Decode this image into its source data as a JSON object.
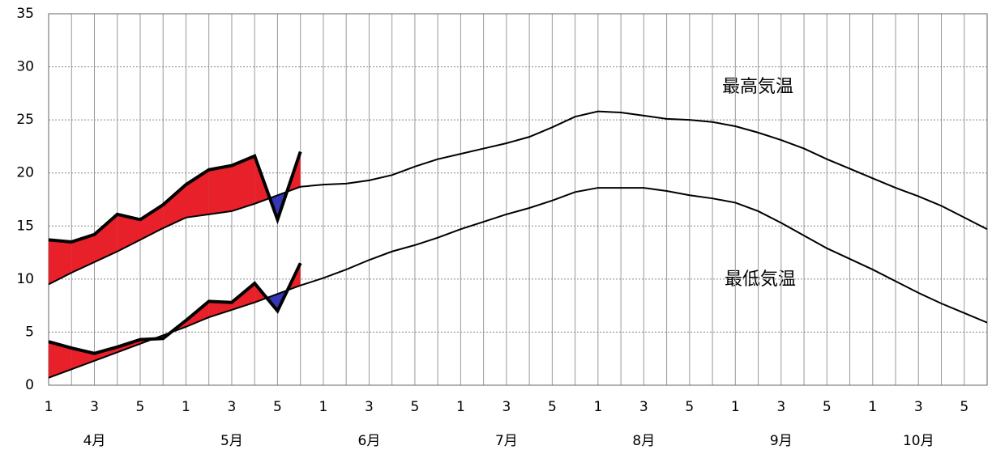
{
  "chart_data": {
    "type": "line",
    "categories": [
      "1",
      null,
      "3",
      null,
      "5",
      null,
      "1",
      null,
      "3",
      null,
      "5",
      null,
      "1",
      null,
      "3",
      null,
      "5",
      null,
      "1",
      null,
      "3",
      null,
      "5",
      null,
      "1",
      null,
      "3",
      null,
      "5",
      null,
      "1",
      null,
      "3",
      null,
      "5",
      null,
      "1",
      null,
      "3",
      null,
      "5",
      null
    ],
    "month_labels": [
      "4月",
      "5月",
      "6月",
      "7月",
      "8月",
      "9月",
      "10月"
    ],
    "ylim": [
      0,
      35
    ],
    "yticks": [
      0,
      5,
      10,
      15,
      20,
      25,
      30,
      35
    ],
    "grid": true,
    "annotations": [
      "最高気温",
      "最低気温"
    ],
    "above_color": "#e8202a",
    "below_color": "#3535b8",
    "series": [
      {
        "color": "#000000",
        "values": [
          9.5,
          10.6,
          11.6,
          12.6,
          13.7,
          14.8,
          15.8,
          16.1,
          16.4,
          17.1,
          17.9,
          18.7,
          18.9,
          19.0,
          19.3,
          19.8,
          20.6,
          21.3,
          21.8,
          22.3,
          22.8,
          23.4,
          24.3,
          25.3,
          25.8,
          25.7,
          25.4,
          25.1,
          25.0,
          24.8,
          24.4,
          23.8,
          23.1,
          22.3,
          21.3,
          20.4,
          19.5,
          18.6,
          17.8,
          16.9,
          15.8,
          14.7
        ]
      },
      {
        "color": "#000000",
        "values": [
          0.7,
          1.5,
          2.3,
          3.1,
          3.9,
          4.7,
          5.5,
          6.4,
          7.1,
          7.8,
          8.6,
          9.4,
          10.1,
          10.9,
          11.8,
          12.6,
          13.2,
          13.9,
          14.7,
          15.4,
          16.1,
          16.7,
          17.4,
          18.2,
          18.6,
          18.6,
          18.6,
          18.3,
          17.9,
          17.6,
          17.2,
          16.4,
          15.3,
          14.1,
          12.9,
          11.9,
          10.9,
          9.8,
          8.7,
          7.7,
          6.8,
          5.9
        ]
      },
      {
        "color": "#000000",
        "values": [
          13.7,
          13.5,
          14.2,
          16.1,
          15.6,
          17.0,
          18.9,
          20.3,
          20.7,
          21.6,
          15.6,
          22.0,
          null,
          null,
          null,
          null,
          null,
          null,
          null,
          null,
          null,
          null,
          null,
          null,
          null,
          null,
          null,
          null,
          null,
          null,
          null,
          null,
          null,
          null,
          null,
          null,
          null,
          null,
          null,
          null,
          null,
          null
        ]
      },
      {
        "color": "#000000",
        "values": [
          4.1,
          3.5,
          3.0,
          3.6,
          4.3,
          4.4,
          6.1,
          7.9,
          7.8,
          9.6,
          7.0,
          11.5,
          null,
          null,
          null,
          null,
          null,
          null,
          null,
          null,
          null,
          null,
          null,
          null,
          null,
          null,
          null,
          null,
          null,
          null,
          null,
          null,
          null,
          null,
          null,
          null,
          null,
          null,
          null,
          null,
          null,
          null
        ]
      }
    ]
  }
}
